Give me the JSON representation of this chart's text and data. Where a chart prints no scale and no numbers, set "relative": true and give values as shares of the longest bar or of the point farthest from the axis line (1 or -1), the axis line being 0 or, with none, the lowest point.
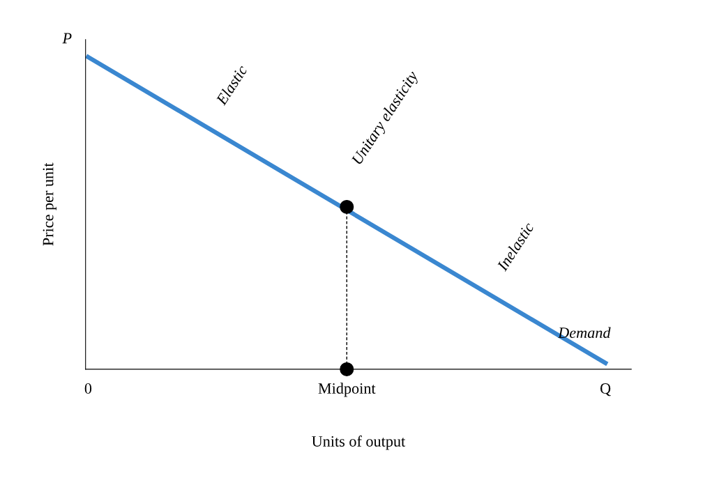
{
  "chart_data": {
    "type": "line",
    "relative": true,
    "xlabel": "Units of output",
    "ylabel": "Price per unit",
    "categories": [
      "0",
      "Midpoint",
      "Q"
    ],
    "series": [
      {
        "name": "Demand",
        "color": "#3a87d0",
        "values": [
          1,
          null,
          0.02
        ]
      },
      {
        "type": "line",
        "color": "#000000",
        "line_style": "dashed",
        "x": [
          "Midpoint",
          "Midpoint"
        ],
        "values": [
          0,
          0.52
        ]
      },
      {
        "type": "scatter",
        "color": "#000000",
        "marker": "circle",
        "x": [
          "Midpoint",
          "Midpoint"
        ],
        "values": [
          0.52,
          0
        ]
      }
    ],
    "annotations": [
      "P",
      "Elastic",
      "Unitary elasticity",
      "Inelastic"
    ],
    "grid": false,
    "legend": false
  }
}
